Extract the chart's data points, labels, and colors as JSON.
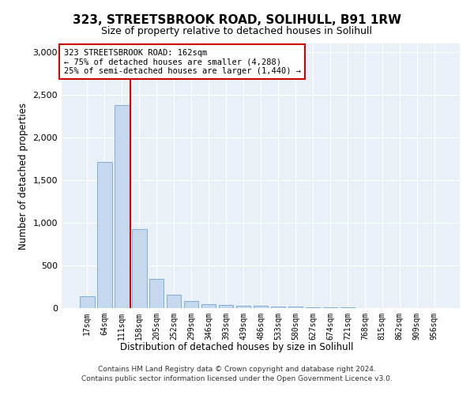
{
  "title": "323, STREETSBROOK ROAD, SOLIHULL, B91 1RW",
  "subtitle": "Size of property relative to detached houses in Solihull",
  "xlabel": "Distribution of detached houses by size in Solihull",
  "ylabel": "Number of detached properties",
  "bar_labels": [
    "17sqm",
    "64sqm",
    "111sqm",
    "158sqm",
    "205sqm",
    "252sqm",
    "299sqm",
    "346sqm",
    "393sqm",
    "439sqm",
    "486sqm",
    "533sqm",
    "580sqm",
    "627sqm",
    "674sqm",
    "721sqm",
    "768sqm",
    "815sqm",
    "862sqm",
    "909sqm",
    "956sqm"
  ],
  "bar_values": [
    140,
    1710,
    2380,
    930,
    340,
    160,
    85,
    50,
    35,
    30,
    25,
    20,
    15,
    10,
    8,
    5,
    4,
    3,
    2,
    2,
    2
  ],
  "bar_color": "#c5d8ed",
  "bar_edge_color": "#7fafd4",
  "property_line_x": 2.5,
  "property_line_color": "#cc0000",
  "annotation_text": "323 STREETSBROOK ROAD: 162sqm\n← 75% of detached houses are smaller (4,288)\n25% of semi-detached houses are larger (1,440) →",
  "annotation_box_color": "#ffffff",
  "annotation_box_edge_color": "#cc0000",
  "ylim": [
    0,
    3100
  ],
  "yticks": [
    0,
    500,
    1000,
    1500,
    2000,
    2500,
    3000
  ],
  "bg_color": "#eaf0f8",
  "footer_line1": "Contains HM Land Registry data © Crown copyright and database right 2024.",
  "footer_line2": "Contains public sector information licensed under the Open Government Licence v3.0."
}
